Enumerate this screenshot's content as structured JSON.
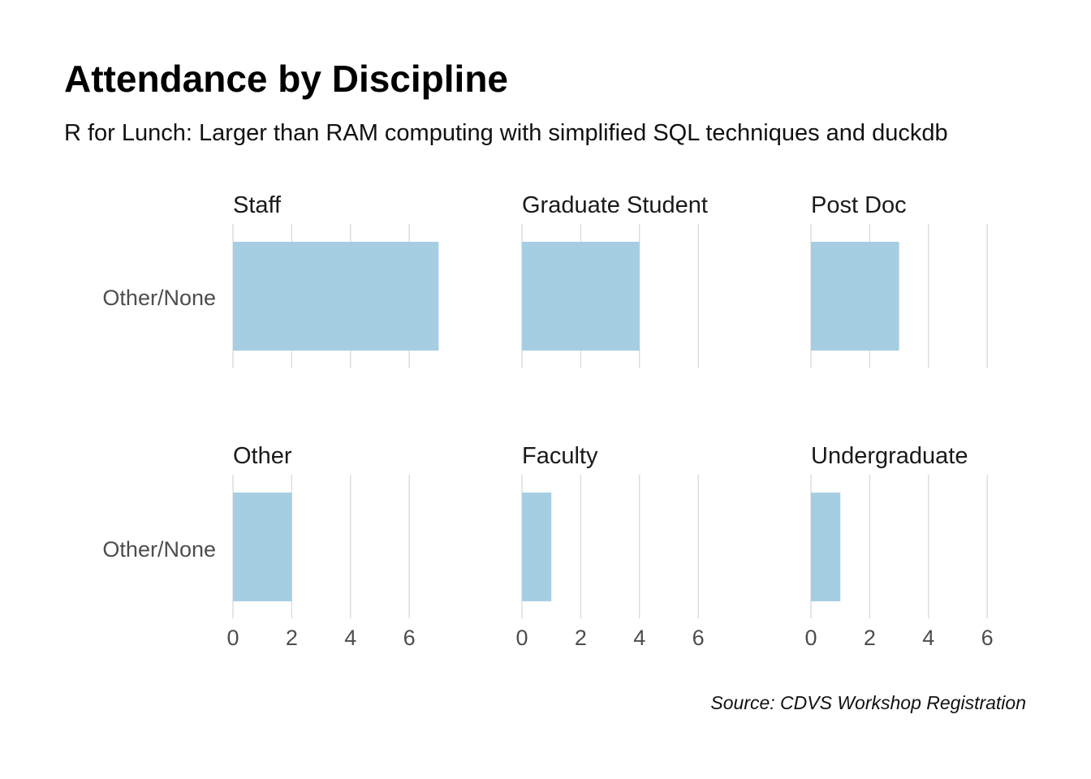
{
  "colors": {
    "bar": "#a6cee3",
    "grid": "#d9d9d9",
    "axis_text": "#4d4d4d"
  },
  "chart_data": {
    "type": "bar",
    "orientation": "horizontal",
    "title": "Attendance by Discipline",
    "subtitle": "R for Lunch: Larger than RAM computing with simplified SQL techniques and duckdb",
    "caption": "Source: CDVS Workshop Registration",
    "xlabel": "",
    "ylabel": "",
    "xlim": [
      0,
      7.5
    ],
    "xticks": [
      0,
      2,
      4,
      6
    ],
    "grid": true,
    "legend": "none",
    "facets": [
      {
        "label": "Staff",
        "categories": [
          "Other/None"
        ],
        "values": [
          7
        ]
      },
      {
        "label": "Graduate Student",
        "categories": [
          "Other/None"
        ],
        "values": [
          4
        ]
      },
      {
        "label": "Post Doc",
        "categories": [
          "Other/None"
        ],
        "values": [
          3
        ]
      },
      {
        "label": "Other",
        "categories": [
          "Other/None"
        ],
        "values": [
          2
        ]
      },
      {
        "label": "Faculty",
        "categories": [
          "Other/None"
        ],
        "values": [
          1
        ]
      },
      {
        "label": "Undergraduate",
        "categories": [
          "Other/None"
        ],
        "values": [
          1
        ]
      }
    ]
  }
}
